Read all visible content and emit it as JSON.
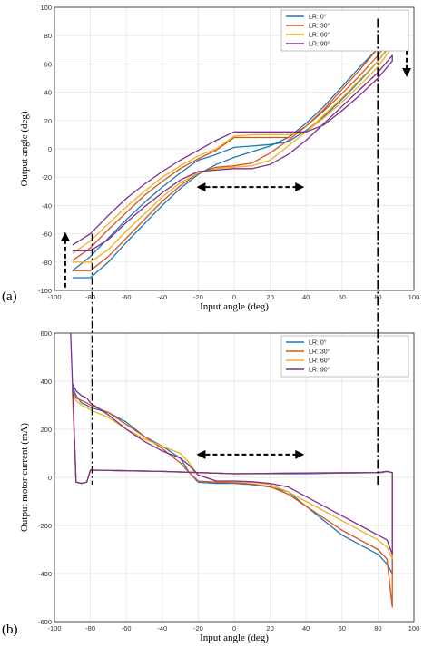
{
  "chart_data": [
    {
      "panel_label": "(a)",
      "type": "line",
      "xlabel": "Input angle (deg)",
      "ylabel": "Output angle (deg)",
      "xlim": [
        -100,
        100
      ],
      "ylim": [
        -100,
        100
      ],
      "xticks": [
        -100,
        -80,
        -60,
        -40,
        -20,
        0,
        20,
        40,
        60,
        80,
        100
      ],
      "yticks": [
        -100,
        -80,
        -60,
        -40,
        -20,
        0,
        20,
        40,
        60,
        80,
        100
      ],
      "grid": true,
      "legend_position": "top-right",
      "series": [
        {
          "name": "LR: 0°",
          "color": "#1f77b4",
          "x": [
            -90,
            -80,
            -70,
            -60,
            -50,
            -40,
            -30,
            -20,
            -10,
            0,
            10,
            20,
            30,
            40,
            50,
            60,
            70,
            80,
            88,
            88,
            80,
            70,
            60,
            50,
            40,
            30,
            20,
            10,
            0,
            -10,
            -20,
            -30,
            -40,
            -50,
            -60,
            -70,
            -80,
            -90
          ],
          "y": [
            -91,
            -91,
            -80,
            -66,
            -53,
            -40,
            -28,
            -18,
            -11,
            -6,
            -2,
            2,
            8,
            18,
            30,
            44,
            58,
            71,
            82,
            75,
            62,
            48,
            35,
            23,
            13,
            5,
            3,
            2,
            1,
            -4,
            -8,
            -17,
            -27,
            -38,
            -50,
            -63,
            -76,
            -86
          ]
        },
        {
          "name": "LR: 30°",
          "color": "#d95319",
          "x": [
            -90,
            -80,
            -70,
            -60,
            -50,
            -40,
            -30,
            -20,
            -10,
            0,
            10,
            20,
            30,
            40,
            50,
            60,
            70,
            80,
            88,
            88,
            80,
            70,
            60,
            50,
            40,
            30,
            20,
            10,
            0,
            -10,
            -20,
            -30,
            -40,
            -50,
            -60,
            -70,
            -80,
            -90
          ],
          "y": [
            -86,
            -86,
            -76,
            -63,
            -50,
            -37,
            -26,
            -17,
            -13,
            -12,
            -10,
            -3,
            6,
            16,
            28,
            42,
            56,
            71,
            85,
            80,
            66,
            52,
            39,
            27,
            16,
            8,
            8,
            8,
            8,
            -1,
            -7,
            -14,
            -23,
            -33,
            -45,
            -57,
            -70,
            -79
          ]
        },
        {
          "name": "LR: 60°",
          "color": "#edb120",
          "x": [
            -90,
            -80,
            -70,
            -60,
            -50,
            -40,
            -30,
            -20,
            -10,
            0,
            10,
            20,
            30,
            40,
            50,
            60,
            70,
            80,
            88,
            88,
            80,
            70,
            60,
            50,
            40,
            30,
            20,
            10,
            0,
            -10,
            -20,
            -30,
            -40,
            -50,
            -60,
            -70,
            -80,
            -90
          ],
          "y": [
            -80,
            -80,
            -71,
            -58,
            -46,
            -34,
            -24,
            -17,
            -14,
            -13,
            -12,
            -8,
            2,
            12,
            24,
            36,
            49,
            62,
            76,
            72,
            58,
            45,
            33,
            22,
            12,
            10,
            10,
            10,
            9,
            0,
            -5,
            -12,
            -20,
            -30,
            -41,
            -53,
            -65,
            -74
          ]
        },
        {
          "name": "LR: 90°",
          "color": "#7e2f8e",
          "x": [
            -90,
            -80,
            -70,
            -60,
            -50,
            -40,
            -30,
            -20,
            -10,
            0,
            10,
            20,
            30,
            40,
            50,
            60,
            70,
            80,
            88,
            88,
            80,
            70,
            60,
            50,
            40,
            30,
            20,
            10,
            0,
            -10,
            -20,
            -30,
            -40,
            -50,
            -60,
            -70,
            -80,
            -90
          ],
          "y": [
            -72,
            -72,
            -64,
            -52,
            -41,
            -31,
            -22,
            -16,
            -15,
            -14,
            -14,
            -11,
            -4,
            6,
            18,
            30,
            42,
            54,
            66,
            62,
            50,
            38,
            27,
            17,
            12,
            12,
            12,
            12,
            12,
            6,
            -1,
            -8,
            -16,
            -25,
            -35,
            -47,
            -60,
            -68
          ]
        }
      ]
    },
    {
      "panel_label": "(b)",
      "type": "line",
      "xlabel": "Input angle (deg)",
      "ylabel": "Output motor current (mA)",
      "xlim": [
        -100,
        100
      ],
      "ylim": [
        -600,
        600
      ],
      "xticks": [
        -100,
        -80,
        -60,
        -40,
        -20,
        0,
        20,
        40,
        60,
        80,
        100
      ],
      "yticks": [
        -600,
        -400,
        -200,
        0,
        200,
        400,
        600
      ],
      "grid": true,
      "legend_position": "top-right",
      "series": [
        {
          "name": "LR: 0°",
          "color": "#1f77b4",
          "x": [
            -90,
            -88,
            -85,
            -82,
            -80,
            -70,
            -60,
            -50,
            -40,
            -30,
            -25,
            -20,
            -10,
            0,
            10,
            20,
            30,
            40,
            50,
            60,
            70,
            80,
            85,
            88,
            88,
            85,
            82,
            80,
            40,
            0,
            -20,
            -40,
            -79,
            -80,
            -82,
            -85,
            -88,
            -90
          ],
          "y": [
            380,
            340,
            310,
            300,
            290,
            270,
            230,
            170,
            130,
            80,
            20,
            -20,
            -25,
            -25,
            -30,
            -40,
            -60,
            -120,
            -180,
            -240,
            -280,
            -320,
            -360,
            -400,
            20,
            25,
            20,
            20,
            15,
            15,
            20,
            25,
            30,
            30,
            -20,
            -25,
            -20,
            380
          ]
        },
        {
          "name": "LR: 30°",
          "color": "#d95319",
          "x": [
            -90,
            -88,
            -85,
            -82,
            -80,
            -70,
            -60,
            -50,
            -40,
            -30,
            -25,
            -20,
            -10,
            0,
            10,
            20,
            30,
            40,
            50,
            60,
            70,
            80,
            85,
            88,
            88,
            85,
            82,
            80,
            40,
            0,
            -20,
            -40,
            -79,
            -80,
            -82,
            -85,
            -88,
            -90
          ],
          "y": [
            360,
            330,
            320,
            310,
            300,
            270,
            220,
            170,
            120,
            60,
            20,
            -15,
            -20,
            -22,
            -28,
            -38,
            -70,
            -120,
            -170,
            -220,
            -260,
            -300,
            -340,
            -540,
            20,
            25,
            22,
            20,
            18,
            15,
            20,
            25,
            30,
            30,
            -20,
            -25,
            -20,
            360
          ]
        },
        {
          "name": "LR: 60°",
          "color": "#edb120",
          "x": [
            -90,
            -88,
            -85,
            -82,
            -80,
            -70,
            -60,
            -50,
            -40,
            -30,
            -25,
            -20,
            -10,
            0,
            10,
            20,
            30,
            40,
            50,
            60,
            70,
            80,
            85,
            88,
            88,
            85,
            82,
            80,
            40,
            0,
            -20,
            -40,
            -79,
            -80,
            -82,
            -85,
            -88,
            -90
          ],
          "y": [
            340,
            320,
            300,
            290,
            280,
            250,
            200,
            160,
            130,
            100,
            60,
            10,
            -15,
            -18,
            -20,
            -30,
            -60,
            -100,
            -140,
            -180,
            -220,
            -260,
            -290,
            -340,
            20,
            25,
            22,
            20,
            18,
            15,
            20,
            25,
            30,
            30,
            -20,
            -25,
            -20,
            340
          ]
        },
        {
          "name": "LR: 90°",
          "color": "#7e2f8e",
          "x": [
            -91,
            -90,
            -88,
            -85,
            -82,
            -80,
            -70,
            -60,
            -50,
            -40,
            -30,
            -25,
            -20,
            -10,
            0,
            10,
            20,
            30,
            40,
            50,
            60,
            70,
            80,
            85,
            88,
            88,
            85,
            82,
            80,
            40,
            0,
            -20,
            -40,
            -79,
            -80,
            -82,
            -85,
            -88,
            -90
          ],
          "y": [
            600,
            390,
            360,
            340,
            330,
            310,
            260,
            200,
            150,
            110,
            80,
            50,
            10,
            -15,
            -15,
            -18,
            -25,
            -40,
            -80,
            -120,
            -160,
            -200,
            -240,
            -260,
            -320,
            20,
            25,
            22,
            20,
            18,
            15,
            20,
            25,
            30,
            30,
            -20,
            -25,
            -20,
            390
          ]
        }
      ]
    }
  ]
}
